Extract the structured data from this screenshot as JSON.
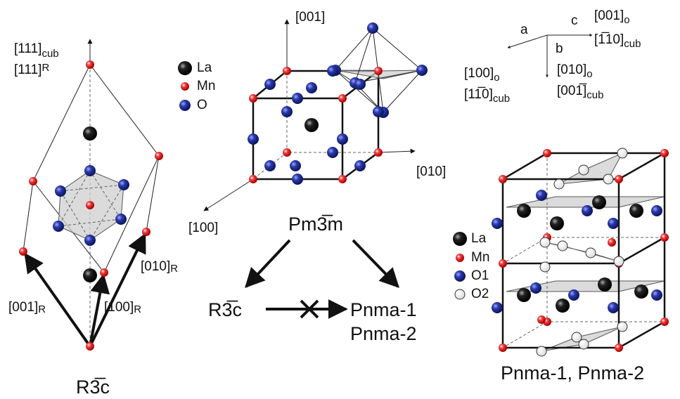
{
  "rhombohedral": {
    "axis_cub_111": {
      "main": "[111]",
      "sub": "cub"
    },
    "axis_r_111": {
      "main": "[111]",
      "sub": "R"
    },
    "axis_r_001": {
      "main": "[001]",
      "sub": "R"
    },
    "axis_r_100": {
      "main": "[100]",
      "sub": "R"
    },
    "axis_r_010": {
      "main": "[010]",
      "sub": "R"
    },
    "title": "R3̅c"
  },
  "cubic": {
    "legend": [
      "La",
      "Mn",
      "O"
    ],
    "axes": {
      "z": "[001]",
      "y": "[010]",
      "x": "[100]"
    },
    "title": "Pm3̅m"
  },
  "transitions": {
    "from": "R3̅c",
    "to": [
      "Pnma-1",
      "Pnma-2"
    ]
  },
  "orientation": {
    "a": "a",
    "b": "b",
    "c": "c",
    "c_o": {
      "main": "[001]",
      "sub": "o"
    },
    "c_cub": {
      "main": "[1̅10]",
      "sub": "cub"
    },
    "a_o": {
      "main": "[100]",
      "sub": "o"
    },
    "a_cub": {
      "main": "[11̅0]",
      "sub": "cub"
    },
    "b_o": {
      "main": "[010]",
      "sub": "o"
    },
    "b_cub": {
      "main": "[001̅]",
      "sub": "cub"
    }
  },
  "orthorhombic": {
    "legend": [
      "La",
      "Mn",
      "O1",
      "O2"
    ],
    "title": "Pnma-1, Pnma-2"
  }
}
